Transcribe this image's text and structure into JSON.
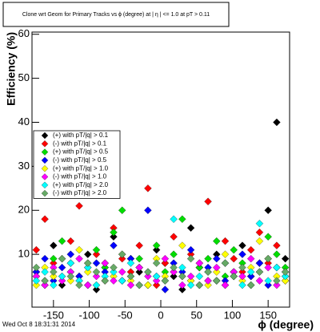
{
  "chart_data": {
    "type": "scatter",
    "title": "Clone wrt Geom for Primary Tracks vs ϕ (degree) at | η | <= 1.0 at pT > 0.11",
    "x_label": "ϕ (degree)",
    "y_label": "Efficiency (%)",
    "timestamp": "Wed Oct  8 18:31:31 2014",
    "x": [
      -174,
      -162,
      -150,
      -138,
      -126,
      -114,
      -102,
      -90,
      -78,
      -66,
      -54,
      -42,
      -30,
      -18,
      -6,
      6,
      18,
      30,
      42,
      54,
      66,
      78,
      90,
      102,
      114,
      126,
      138,
      150,
      162,
      174
    ],
    "xlim": [
      -180,
      180
    ],
    "xticks": [
      -150,
      -100,
      -50,
      0,
      50,
      100,
      150
    ],
    "ylim": [
      -2,
      60.5
    ],
    "yticks": [
      10,
      20,
      30,
      40,
      50,
      60
    ],
    "series": [
      {
        "name": "(+) with pT/|q| > 0.1",
        "color": "#000000",
        "values": [
          6,
          4,
          12,
          3,
          8,
          5,
          10,
          2,
          7,
          14,
          4,
          9,
          6,
          3,
          11,
          8,
          5,
          2,
          16,
          7,
          4,
          10,
          3,
          6,
          12,
          5,
          8,
          20,
          40,
          9
        ]
      },
      {
        "name": "(-) with pT/|q| > 0.1",
        "color": "#ff0000",
        "values": [
          11,
          18,
          8,
          5,
          13,
          21,
          7,
          10,
          4,
          16,
          9,
          6,
          12,
          25,
          3,
          8,
          14,
          5,
          10,
          7,
          22,
          4,
          13,
          9,
          6,
          11,
          15,
          8,
          12,
          5
        ]
      },
      {
        "name": "(+) with pT/|q| > 0.5",
        "color": "#00dd00",
        "values": [
          5,
          3,
          9,
          13,
          6,
          4,
          8,
          11,
          7,
          15,
          20,
          5,
          9,
          3,
          12,
          6,
          10,
          18,
          4,
          7,
          9,
          13,
          5,
          11,
          8,
          3,
          6,
          14,
          10,
          7
        ]
      },
      {
        "name": "(-) with pT/|q| > 0.5",
        "color": "#0000ff",
        "values": [
          6,
          9,
          4,
          7,
          10,
          5,
          3,
          8,
          6,
          12,
          4,
          9,
          7,
          20,
          5,
          2,
          8,
          6,
          11,
          3,
          7,
          9,
          4,
          6,
          10,
          5,
          8,
          3,
          7,
          4
        ]
      },
      {
        "name": "(+) with pT/|q| > 1.0",
        "color": "#ffff00",
        "values": [
          3,
          7,
          5,
          9,
          4,
          11,
          6,
          3,
          8,
          5,
          10,
          4,
          7,
          3,
          9,
          5,
          6,
          12,
          4,
          8,
          3,
          6,
          10,
          5,
          4,
          7,
          13,
          9,
          5,
          4
        ]
      },
      {
        "name": "(-) with pT/|q| > 1.0",
        "color": "#ff00ff",
        "values": [
          5,
          3,
          7,
          4,
          6,
          9,
          3,
          5,
          8,
          4,
          6,
          3,
          7,
          5,
          4,
          9,
          6,
          3,
          5,
          8,
          4,
          7,
          3,
          6,
          5,
          9,
          4,
          7,
          3,
          6
        ]
      },
      {
        "name": "(+) with pT/|q| > 2.0",
        "color": "#00ffff",
        "values": [
          4,
          6,
          3,
          5,
          8,
          4,
          7,
          3,
          5,
          6,
          4,
          8,
          3,
          6,
          5,
          4,
          18,
          7,
          3,
          5,
          6,
          4,
          8,
          5,
          3,
          6,
          17,
          4,
          7,
          5
        ]
      },
      {
        "name": "(-) with pT/|q| > 2.0",
        "color": "#66aa66",
        "values": [
          7,
          4,
          6,
          9,
          5,
          3,
          8,
          6,
          4,
          7,
          10,
          5,
          3,
          6,
          8,
          4,
          7,
          5,
          9,
          3,
          6,
          4,
          8,
          5,
          7,
          3,
          6,
          9,
          4,
          6
        ]
      }
    ]
  }
}
